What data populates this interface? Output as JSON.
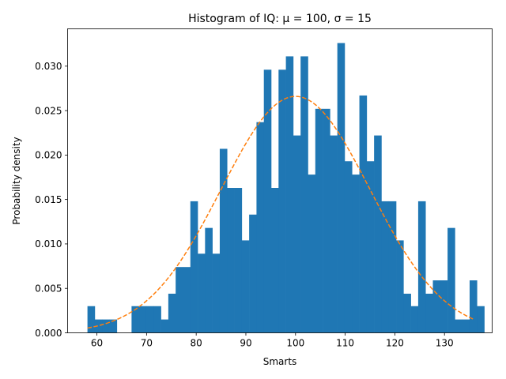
{
  "chart_data": {
    "type": "bar",
    "title": "Histogram of IQ: μ = 100, σ = 15",
    "xlabel": "Smarts",
    "ylabel": "Probability density",
    "xlim": [
      54.1,
      139.6
    ],
    "ylim": [
      0,
      0.0342
    ],
    "x_ticks": [
      60,
      70,
      80,
      90,
      100,
      110,
      120,
      130
    ],
    "y_ticks": [
      0.0,
      0.005,
      0.01,
      0.015,
      0.02,
      0.025,
      0.03
    ],
    "y_tick_labels": [
      "0.000",
      "0.005",
      "0.010",
      "0.015",
      "0.020",
      "0.025",
      "0.030"
    ],
    "grid": false,
    "bins": {
      "start": 58.1,
      "width": 1.48,
      "values": [
        0.003,
        0.0015,
        0.0015,
        0.0015,
        0.0,
        0.0,
        0.003,
        0.003,
        0.003,
        0.003,
        0.0015,
        0.0044,
        0.0074,
        0.0074,
        0.0148,
        0.0089,
        0.0118,
        0.0089,
        0.0207,
        0.0163,
        0.0163,
        0.0104,
        0.0133,
        0.0237,
        0.0296,
        0.0163,
        0.0296,
        0.0311,
        0.0222,
        0.0311,
        0.0178,
        0.0252,
        0.0252,
        0.0222,
        0.0326,
        0.0193,
        0.0178,
        0.0267,
        0.0193,
        0.0222,
        0.0148,
        0.0148,
        0.0104,
        0.0044,
        0.003,
        0.0148,
        0.0044,
        0.0059,
        0.0059,
        0.0118,
        0.0015,
        0.0015,
        0.0059,
        0.003
      ]
    },
    "fit_curve": {
      "mu": 100,
      "sigma": 15,
      "x_range": [
        58.1,
        136.0
      ],
      "style": "dashed"
    },
    "colors": {
      "bars": "#1f77b4",
      "curve": "#ff7f0e"
    }
  }
}
